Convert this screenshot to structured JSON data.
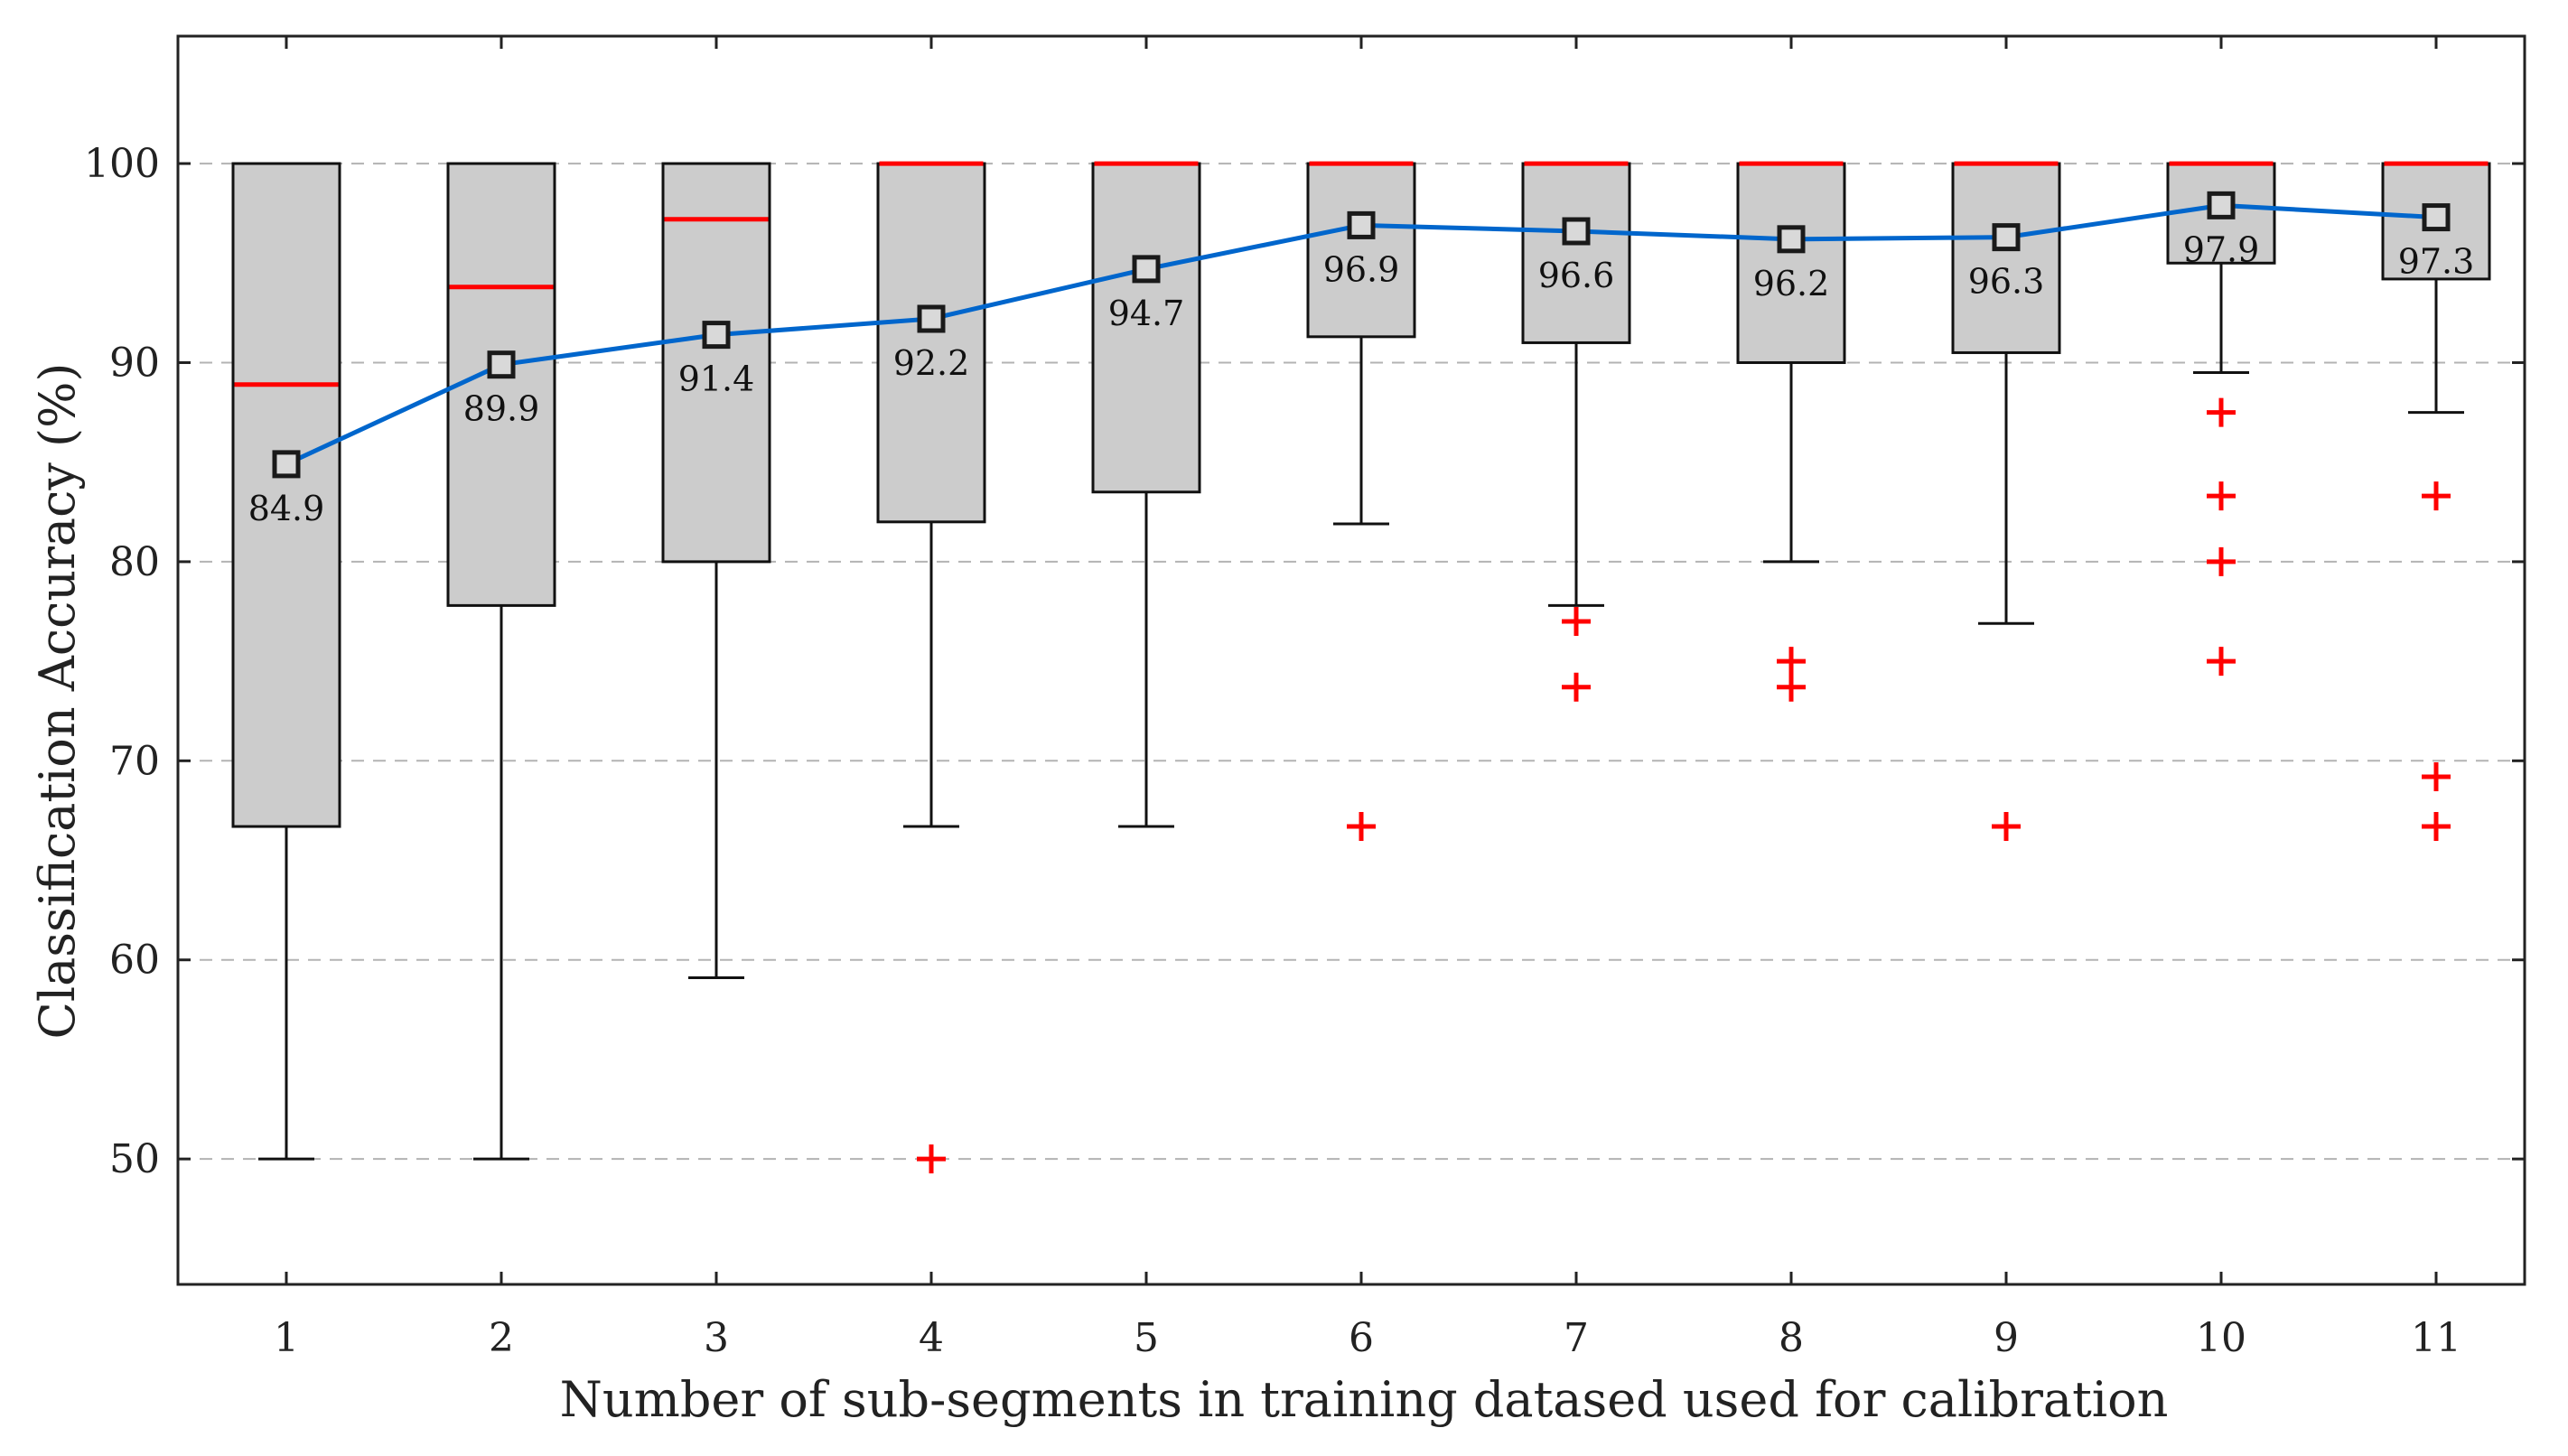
{
  "chart_data": {
    "type": "box",
    "title": "",
    "xlabel": "Number of sub-segments in training datased used for calibration",
    "ylabel": "Classification Accuracy (%)",
    "ylim": [
      43.7,
      106.4
    ],
    "yticks": [
      50,
      60,
      70,
      80,
      90,
      100
    ],
    "grid": "horizontal dashed",
    "categories": [
      "1",
      "2",
      "3",
      "4",
      "5",
      "6",
      "7",
      "8",
      "9",
      "10",
      "11"
    ],
    "boxes": [
      {
        "category": "1",
        "whisker_low": 50.0,
        "q1": 66.7,
        "median": 88.9,
        "q3": 100.0,
        "whisker_high": 100.0,
        "mean": 84.9,
        "mean_label": "84.9",
        "outliers": []
      },
      {
        "category": "2",
        "whisker_low": 50.0,
        "q1": 77.8,
        "median": 93.8,
        "q3": 100.0,
        "whisker_high": 100.0,
        "mean": 89.9,
        "mean_label": "89.9",
        "outliers": []
      },
      {
        "category": "3",
        "whisker_low": 59.1,
        "q1": 80.0,
        "median": 97.2,
        "q3": 100.0,
        "whisker_high": 100.0,
        "mean": 91.4,
        "mean_label": "91.4",
        "outliers": []
      },
      {
        "category": "4",
        "whisker_low": 66.7,
        "q1": 82.0,
        "median": 100.0,
        "q3": 100.0,
        "whisker_high": 100.0,
        "mean": 92.2,
        "mean_label": "92.2",
        "outliers": [
          50.0
        ]
      },
      {
        "category": "5",
        "whisker_low": 66.7,
        "q1": 83.5,
        "median": 100.0,
        "q3": 100.0,
        "whisker_high": 100.0,
        "mean": 94.7,
        "mean_label": "94.7",
        "outliers": []
      },
      {
        "category": "6",
        "whisker_low": 81.9,
        "q1": 91.3,
        "median": 100.0,
        "q3": 100.0,
        "whisker_high": 100.0,
        "mean": 96.9,
        "mean_label": "96.9",
        "outliers": [
          66.7
        ]
      },
      {
        "category": "7",
        "whisker_low": 77.8,
        "q1": 91.0,
        "median": 100.0,
        "q3": 100.0,
        "whisker_high": 100.0,
        "mean": 96.6,
        "mean_label": "96.6",
        "outliers": [
          77.0,
          73.7
        ]
      },
      {
        "category": "8",
        "whisker_low": 80.0,
        "q1": 90.0,
        "median": 100.0,
        "q3": 100.0,
        "whisker_high": 100.0,
        "mean": 96.2,
        "mean_label": "96.2",
        "outliers": [
          75.0,
          73.7
        ]
      },
      {
        "category": "9",
        "whisker_low": 76.9,
        "q1": 90.5,
        "median": 100.0,
        "q3": 100.0,
        "whisker_high": 100.0,
        "mean": 96.3,
        "mean_label": "96.3",
        "outliers": [
          66.7
        ]
      },
      {
        "category": "10",
        "whisker_low": 89.5,
        "q1": 95.0,
        "median": 100.0,
        "q3": 100.0,
        "whisker_high": 100.0,
        "mean": 97.9,
        "mean_label": "97.9",
        "outliers": [
          87.5,
          83.3,
          80.0,
          75.0
        ]
      },
      {
        "category": "11",
        "whisker_low": 87.5,
        "q1": 94.2,
        "median": 100.0,
        "q3": 100.0,
        "whisker_high": 100.0,
        "mean": 97.3,
        "mean_label": "97.3",
        "outliers": [
          83.3,
          69.2,
          66.7
        ]
      }
    ],
    "mean_series": {
      "name": "Mean",
      "values": [
        84.9,
        89.9,
        91.4,
        92.2,
        94.7,
        96.9,
        96.6,
        96.2,
        96.3,
        97.9,
        97.3
      ]
    },
    "colors": {
      "box_fill": "#cccccc",
      "box_edge": "#111111",
      "median": "#ff0000",
      "outlier": "#ff0000",
      "mean_line": "#0066cc",
      "mean_marker_edge": "#1a1a1a",
      "mean_marker_fill": "#d9d9d9",
      "grid": "#b3b3b3",
      "axis": "#222222"
    }
  }
}
